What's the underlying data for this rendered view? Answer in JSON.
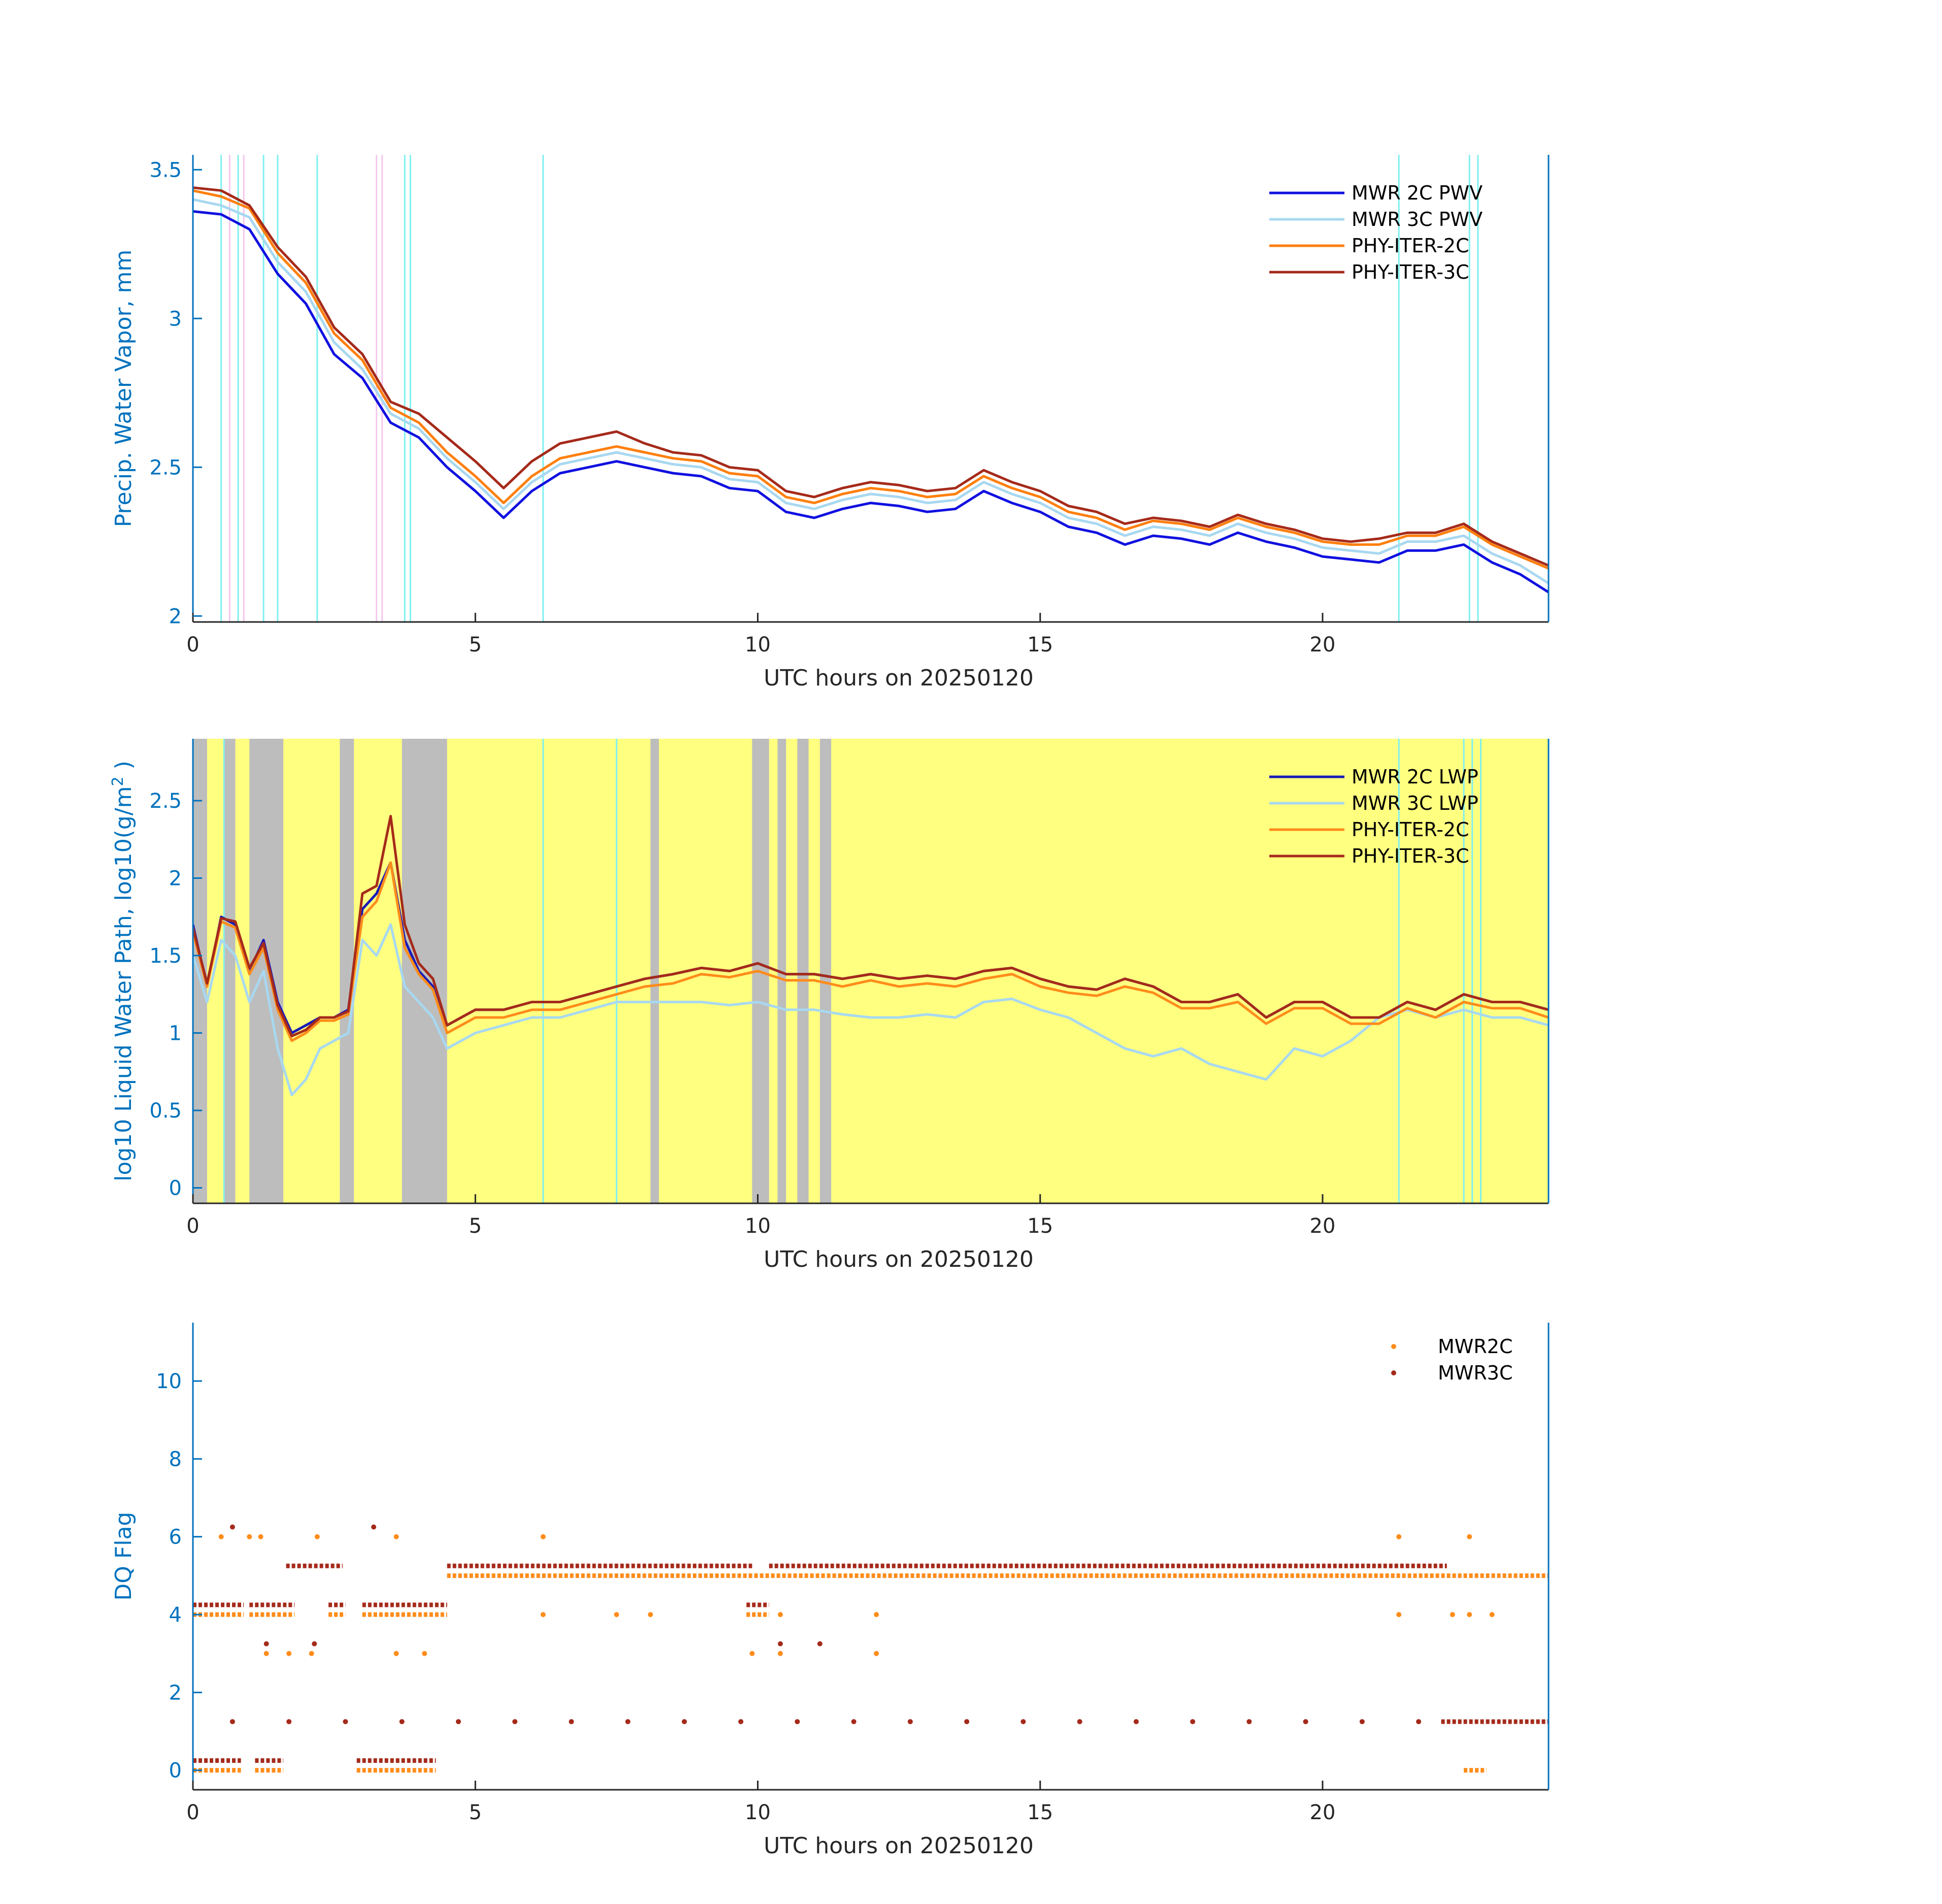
{
  "chart_data": [
    {
      "type": "line",
      "xlabel": "UTC hours on 20250120",
      "ylabel": "Precip. Water Vapor, mm",
      "xlim": [
        0,
        24
      ],
      "ylim": [
        1.98,
        3.55
      ],
      "xticks": [
        "0",
        "5",
        "10",
        "15",
        "20"
      ],
      "xtick_values": [
        0,
        5,
        10,
        15,
        20
      ],
      "yticks": [
        "2",
        "2.5",
        "3",
        "3.5"
      ],
      "ytick_values": [
        2,
        2.5,
        3,
        3.5
      ],
      "legend_position": "top-right",
      "x": [
        0,
        0.5,
        1,
        1.5,
        2,
        2.5,
        3,
        3.5,
        4,
        4.5,
        5,
        5.5,
        6,
        6.5,
        7,
        7.5,
        8,
        8.5,
        9,
        9.5,
        10,
        10.5,
        11,
        11.5,
        12,
        12.5,
        13,
        13.5,
        14,
        14.5,
        15,
        15.5,
        16,
        16.5,
        17,
        17.5,
        18,
        18.5,
        19,
        19.5,
        20,
        20.5,
        21,
        21.5,
        22,
        22.5,
        23,
        23.5,
        24
      ],
      "series": [
        {
          "name": "MWR 2C PWV",
          "color": "#1010e0",
          "values": [
            3.36,
            3.35,
            3.3,
            3.15,
            3.05,
            2.88,
            2.8,
            2.65,
            2.6,
            2.5,
            2.42,
            2.33,
            2.42,
            2.48,
            2.5,
            2.52,
            2.5,
            2.48,
            2.47,
            2.43,
            2.42,
            2.35,
            2.33,
            2.36,
            2.38,
            2.37,
            2.35,
            2.36,
            2.42,
            2.38,
            2.35,
            2.3,
            2.28,
            2.24,
            2.27,
            2.26,
            2.24,
            2.28,
            2.25,
            2.23,
            2.2,
            2.19,
            2.18,
            2.22,
            2.22,
            2.24,
            2.18,
            2.14,
            2.08
          ]
        },
        {
          "name": "MWR 3C PWV",
          "color": "#a8d8f0",
          "values": [
            3.4,
            3.38,
            3.34,
            3.19,
            3.09,
            2.92,
            2.83,
            2.68,
            2.63,
            2.53,
            2.45,
            2.36,
            2.45,
            2.51,
            2.53,
            2.55,
            2.53,
            2.51,
            2.5,
            2.46,
            2.45,
            2.38,
            2.36,
            2.39,
            2.41,
            2.4,
            2.38,
            2.39,
            2.45,
            2.41,
            2.38,
            2.33,
            2.31,
            2.27,
            2.3,
            2.29,
            2.27,
            2.31,
            2.28,
            2.26,
            2.23,
            2.22,
            2.21,
            2.25,
            2.25,
            2.27,
            2.21,
            2.17,
            2.11
          ]
        },
        {
          "name": "PHY-ITER-2C",
          "color": "#ff7f0e",
          "values": [
            3.43,
            3.41,
            3.37,
            3.22,
            3.12,
            2.95,
            2.86,
            2.7,
            2.65,
            2.55,
            2.47,
            2.38,
            2.47,
            2.53,
            2.55,
            2.57,
            2.55,
            2.53,
            2.52,
            2.48,
            2.47,
            2.4,
            2.38,
            2.41,
            2.43,
            2.42,
            2.4,
            2.41,
            2.47,
            2.43,
            2.4,
            2.35,
            2.33,
            2.29,
            2.32,
            2.31,
            2.29,
            2.33,
            2.3,
            2.28,
            2.25,
            2.24,
            2.24,
            2.27,
            2.27,
            2.3,
            2.24,
            2.2,
            2.16
          ]
        },
        {
          "name": "PHY-ITER-3C",
          "color": "#a52a1a",
          "values": [
            3.44,
            3.43,
            3.38,
            3.24,
            3.14,
            2.97,
            2.88,
            2.72,
            2.68,
            2.6,
            2.52,
            2.43,
            2.52,
            2.58,
            2.6,
            2.62,
            2.58,
            2.55,
            2.54,
            2.5,
            2.49,
            2.42,
            2.4,
            2.43,
            2.45,
            2.44,
            2.42,
            2.43,
            2.49,
            2.45,
            2.42,
            2.37,
            2.35,
            2.31,
            2.33,
            2.32,
            2.3,
            2.34,
            2.31,
            2.29,
            2.26,
            2.25,
            2.26,
            2.28,
            2.28,
            2.31,
            2.25,
            2.21,
            2.17
          ]
        }
      ]
    },
    {
      "type": "line",
      "xlabel": "UTC hours on 20250120",
      "ylabel": "log10 Liquid Water Path, log10(g/m",
      "ylabel_sup": "2",
      "ylabel_close": " )",
      "xlim": [
        0,
        24
      ],
      "ylim": [
        -0.1,
        2.9
      ],
      "xticks": [
        "0",
        "5",
        "10",
        "15",
        "20"
      ],
      "xtick_values": [
        0,
        5,
        10,
        15,
        20
      ],
      "yticks": [
        "0",
        "0.5",
        "1",
        "1.5",
        "2",
        "2.5"
      ],
      "ytick_values": [
        0,
        0.5,
        1,
        1.5,
        2,
        2.5
      ],
      "legend_position": "top-right",
      "background_color": "#ffff80",
      "gray_bands": [
        [
          0,
          0.25
        ],
        [
          0.55,
          0.75
        ],
        [
          1.0,
          1.6
        ],
        [
          2.6,
          2.85
        ],
        [
          3.7,
          4.5
        ],
        [
          8.1,
          8.25
        ],
        [
          9.9,
          10.2
        ],
        [
          10.35,
          10.5
        ],
        [
          10.7,
          10.9
        ],
        [
          11.1,
          11.3
        ]
      ],
      "x": [
        0,
        0.25,
        0.5,
        0.75,
        1,
        1.25,
        1.5,
        1.75,
        2,
        2.25,
        2.5,
        2.75,
        3,
        3.25,
        3.5,
        3.75,
        4,
        4.25,
        4.5,
        4.75,
        5,
        5.5,
        6,
        6.5,
        7,
        7.5,
        8,
        8.5,
        9,
        9.5,
        10,
        10.5,
        11,
        11.5,
        12,
        12.5,
        13,
        13.5,
        14,
        14.5,
        15,
        15.5,
        16,
        16.5,
        17,
        17.5,
        18,
        18.5,
        19,
        19.5,
        20,
        20.5,
        21,
        21.5,
        22,
        22.5,
        23,
        23.5,
        24
      ],
      "series": [
        {
          "name": "MWR 2C LWP",
          "color": "#1a1ab8",
          "values": [
            1.7,
            1.3,
            1.75,
            1.7,
            1.4,
            1.6,
            1.2,
            1.0,
            1.05,
            1.1,
            1.1,
            1.15,
            1.8,
            1.9,
            2.1,
            1.6,
            1.4,
            1.3,
            1.05,
            1.1,
            1.15,
            1.15,
            1.2,
            1.2,
            1.25,
            1.3,
            1.35,
            1.38,
            1.42,
            1.4,
            1.45,
            1.38,
            1.38,
            1.35,
            1.38,
            1.35,
            1.37,
            1.35,
            1.4,
            1.42,
            1.35,
            1.3,
            1.28,
            1.35,
            1.3,
            1.2,
            1.2,
            1.25,
            1.1,
            1.2,
            1.2,
            1.1,
            1.1,
            1.2,
            1.15,
            1.25,
            1.2,
            1.2,
            1.15
          ]
        },
        {
          "name": "MWR 3C LWP",
          "color": "#a8d8f0",
          "values": [
            1.5,
            1.2,
            1.6,
            1.5,
            1.2,
            1.4,
            0.9,
            0.6,
            0.7,
            0.9,
            0.95,
            1.0,
            1.6,
            1.5,
            1.7,
            1.3,
            1.2,
            1.1,
            0.9,
            0.95,
            1.0,
            1.05,
            1.1,
            1.1,
            1.15,
            1.2,
            1.2,
            1.2,
            1.2,
            1.18,
            1.2,
            1.15,
            1.15,
            1.12,
            1.1,
            1.1,
            1.12,
            1.1,
            1.2,
            1.22,
            1.15,
            1.1,
            1.0,
            0.9,
            0.85,
            0.9,
            0.8,
            0.75,
            0.7,
            0.9,
            0.85,
            0.95,
            1.1,
            1.15,
            1.1,
            1.15,
            1.1,
            1.1,
            1.05
          ]
        },
        {
          "name": "PHY-ITER-2C",
          "color": "#ff8c1a",
          "values": [
            1.65,
            1.3,
            1.72,
            1.68,
            1.38,
            1.55,
            1.15,
            0.95,
            1.0,
            1.08,
            1.08,
            1.12,
            1.75,
            1.85,
            2.1,
            1.55,
            1.38,
            1.28,
            1.0,
            1.05,
            1.1,
            1.1,
            1.15,
            1.15,
            1.2,
            1.25,
            1.3,
            1.32,
            1.38,
            1.36,
            1.4,
            1.34,
            1.34,
            1.3,
            1.34,
            1.3,
            1.32,
            1.3,
            1.35,
            1.38,
            1.3,
            1.26,
            1.24,
            1.3,
            1.26,
            1.16,
            1.16,
            1.2,
            1.06,
            1.16,
            1.16,
            1.06,
            1.06,
            1.16,
            1.1,
            1.2,
            1.16,
            1.16,
            1.1
          ]
        },
        {
          "name": "PHY-ITER-3C",
          "color": "#a52a1a",
          "values": [
            1.68,
            1.32,
            1.74,
            1.72,
            1.42,
            1.58,
            1.18,
            0.98,
            1.02,
            1.1,
            1.1,
            1.14,
            1.9,
            1.95,
            2.4,
            1.7,
            1.45,
            1.35,
            1.05,
            1.1,
            1.15,
            1.15,
            1.2,
            1.2,
            1.25,
            1.3,
            1.35,
            1.38,
            1.42,
            1.4,
            1.45,
            1.38,
            1.38,
            1.35,
            1.38,
            1.35,
            1.37,
            1.35,
            1.4,
            1.42,
            1.35,
            1.3,
            1.28,
            1.35,
            1.3,
            1.2,
            1.2,
            1.25,
            1.1,
            1.2,
            1.2,
            1.1,
            1.1,
            1.2,
            1.15,
            1.25,
            1.2,
            1.2,
            1.15
          ]
        }
      ]
    },
    {
      "type": "scatter",
      "xlabel": "UTC hours on 20250120",
      "ylabel": "DQ Flag",
      "xlim": [
        0,
        24
      ],
      "ylim": [
        -0.5,
        11.5
      ],
      "xticks": [
        "0",
        "5",
        "10",
        "15",
        "20"
      ],
      "xtick_values": [
        0,
        5,
        10,
        15,
        20
      ],
      "yticks": [
        "0",
        "2",
        "4",
        "6",
        "8",
        "10"
      ],
      "ytick_values": [
        0,
        2,
        4,
        6,
        8,
        10
      ],
      "legend_position": "top-right",
      "series": [
        {
          "name": "MWR2C",
          "color": "#ff8c1a",
          "runs": [
            [
              0.0,
              0.85,
              0
            ],
            [
              1.1,
              1.6,
              0
            ],
            [
              2.9,
              4.3,
              0
            ],
            [
              22.5,
              22.9,
              0
            ],
            [
              0.0,
              0.9,
              4
            ],
            [
              1.0,
              1.8,
              4
            ],
            [
              2.4,
              2.7,
              4
            ],
            [
              3.0,
              4.5,
              4
            ],
            [
              4.5,
              24.0,
              5
            ],
            [
              9.8,
              10.2,
              4
            ]
          ],
          "points": [
            [
              0.5,
              6
            ],
            [
              1.0,
              6
            ],
            [
              1.2,
              6
            ],
            [
              2.2,
              6
            ],
            [
              3.6,
              6
            ],
            [
              6.2,
              6
            ],
            [
              21.35,
              6
            ],
            [
              22.6,
              6
            ],
            [
              1.3,
              3
            ],
            [
              1.7,
              3
            ],
            [
              2.1,
              3
            ],
            [
              3.6,
              3
            ],
            [
              4.1,
              3
            ],
            [
              9.9,
              3
            ],
            [
              10.4,
              3
            ],
            [
              12.1,
              3
            ],
            [
              6.2,
              4
            ],
            [
              7.5,
              4
            ],
            [
              8.1,
              4
            ],
            [
              10.4,
              4
            ],
            [
              12.1,
              4
            ],
            [
              21.35,
              4
            ],
            [
              22.3,
              4
            ],
            [
              22.6,
              4
            ],
            [
              23.0,
              4
            ]
          ]
        },
        {
          "name": "MWR3C",
          "color": "#a52a1a",
          "runs": [
            [
              0.0,
              0.85,
              0.25
            ],
            [
              1.1,
              1.6,
              0.25
            ],
            [
              2.9,
              4.3,
              0.25
            ],
            [
              22.1,
              24.0,
              1.25
            ],
            [
              0.0,
              0.9,
              4.25
            ],
            [
              1.0,
              1.8,
              4.25
            ],
            [
              2.4,
              2.7,
              4.25
            ],
            [
              3.0,
              4.5,
              4.25
            ],
            [
              1.65,
              2.65,
              5.25
            ],
            [
              4.5,
              9.9,
              5.25
            ],
            [
              10.2,
              22.2,
              5.25
            ],
            [
              9.8,
              10.2,
              4.25
            ]
          ],
          "points": [
            [
              0.7,
              6.25
            ],
            [
              3.2,
              6.25
            ],
            [
              1.3,
              3.25
            ],
            [
              2.15,
              3.25
            ],
            [
              10.4,
              3.25
            ],
            [
              11.1,
              3.25
            ],
            [
              0.7,
              1.25
            ],
            [
              1.7,
              1.25
            ],
            [
              2.7,
              1.25
            ],
            [
              3.7,
              1.25
            ],
            [
              4.7,
              1.25
            ],
            [
              5.7,
              1.25
            ],
            [
              6.7,
              1.25
            ],
            [
              7.7,
              1.25
            ],
            [
              8.7,
              1.25
            ],
            [
              9.7,
              1.25
            ],
            [
              10.7,
              1.25
            ],
            [
              11.7,
              1.25
            ],
            [
              12.7,
              1.25
            ],
            [
              13.7,
              1.25
            ],
            [
              14.7,
              1.25
            ],
            [
              15.7,
              1.25
            ],
            [
              16.7,
              1.25
            ],
            [
              17.7,
              1.25
            ],
            [
              18.7,
              1.25
            ],
            [
              19.7,
              1.25
            ],
            [
              20.7,
              1.25
            ],
            [
              21.7,
              1.25
            ]
          ]
        }
      ]
    }
  ]
}
